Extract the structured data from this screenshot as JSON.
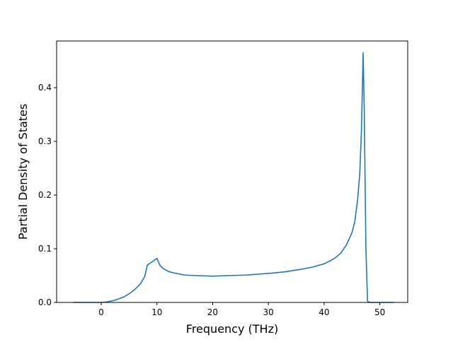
{
  "chart_data": {
    "type": "line",
    "title": "",
    "xlabel": "Frequency (THz)",
    "ylabel": "Partial Density of States",
    "xlim": [
      -8,
      55
    ],
    "ylim": [
      0,
      0.487
    ],
    "xticks": [
      0,
      10,
      20,
      30,
      40,
      50
    ],
    "yticks": [
      0.0,
      0.1,
      0.2,
      0.3,
      0.4
    ],
    "xtick_labels": [
      "0",
      "10",
      "20",
      "30",
      "40",
      "50"
    ],
    "ytick_labels": [
      "0.0",
      "0.1",
      "0.2",
      "0.3",
      "0.4"
    ],
    "grid": false,
    "legend": "none",
    "series": [
      {
        "color": "#1f77b4",
        "x": [
          -5,
          -3,
          -1,
          0,
          1,
          2,
          3,
          4,
          5,
          6,
          7,
          7.8,
          8.3,
          9.2,
          10,
          10.5,
          11,
          12,
          13,
          14,
          15,
          17,
          20,
          23,
          26,
          30,
          33,
          36,
          38,
          40,
          41,
          42,
          43,
          44,
          45,
          45.5,
          46,
          46.4,
          46.7,
          47,
          47.2,
          47.5,
          47.8,
          48.2,
          50,
          52.5
        ],
        "y": [
          0.0,
          0.0,
          0.0,
          0.0,
          0.001,
          0.003,
          0.006,
          0.01,
          0.016,
          0.024,
          0.034,
          0.048,
          0.07,
          0.076,
          0.082,
          0.07,
          0.064,
          0.058,
          0.055,
          0.053,
          0.051,
          0.05,
          0.049,
          0.05,
          0.051,
          0.054,
          0.057,
          0.062,
          0.066,
          0.072,
          0.077,
          0.083,
          0.092,
          0.107,
          0.13,
          0.15,
          0.19,
          0.24,
          0.32,
          0.465,
          0.36,
          0.1,
          0.002,
          0.0,
          0.0,
          0.0
        ]
      }
    ]
  }
}
